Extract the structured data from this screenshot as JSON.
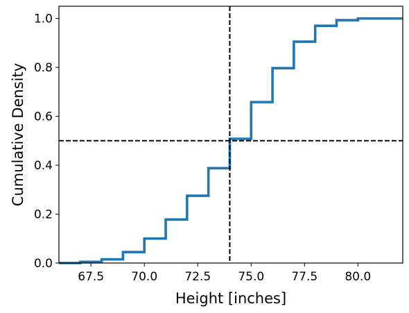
{
  "chart_data": {
    "type": "line",
    "drawstyle": "steps-post",
    "title": "",
    "xlabel": "Height [inches]",
    "ylabel": "Cumulative Density",
    "xlim": [
      66.0,
      82.1
    ],
    "ylim": [
      0.0,
      1.05
    ],
    "xticks": [
      67.5,
      70.0,
      72.5,
      75.0,
      77.5,
      80.0
    ],
    "xtick_labels": [
      "67.5",
      "70.0",
      "72.5",
      "75.0",
      "77.5",
      "80.0"
    ],
    "yticks": [
      0.0,
      0.2,
      0.4,
      0.6,
      0.8,
      1.0
    ],
    "ytick_labels": [
      "0.0",
      "0.2",
      "0.4",
      "0.6",
      "0.8",
      "1.0"
    ],
    "grid": false,
    "series": [
      {
        "color": "#1f77b4",
        "x": [
          66.0,
          67.0,
          68.0,
          69.0,
          70.0,
          71.0,
          72.0,
          73.0,
          74.0,
          75.0,
          76.0,
          77.0,
          78.0,
          79.0,
          80.0,
          81.0,
          82.1
        ],
        "y": [
          0.0,
          0.005,
          0.015,
          0.045,
          0.1,
          0.178,
          0.275,
          0.388,
          0.508,
          0.658,
          0.797,
          0.905,
          0.97,
          0.993,
          1.0,
          1.0,
          1.0
        ]
      }
    ],
    "reference_lines": [
      {
        "orientation": "vertical",
        "value": 74.0,
        "color": "#000000",
        "style": "dashed"
      },
      {
        "orientation": "horizontal",
        "value": 0.5,
        "color": "#000000",
        "style": "dashed"
      }
    ]
  }
}
